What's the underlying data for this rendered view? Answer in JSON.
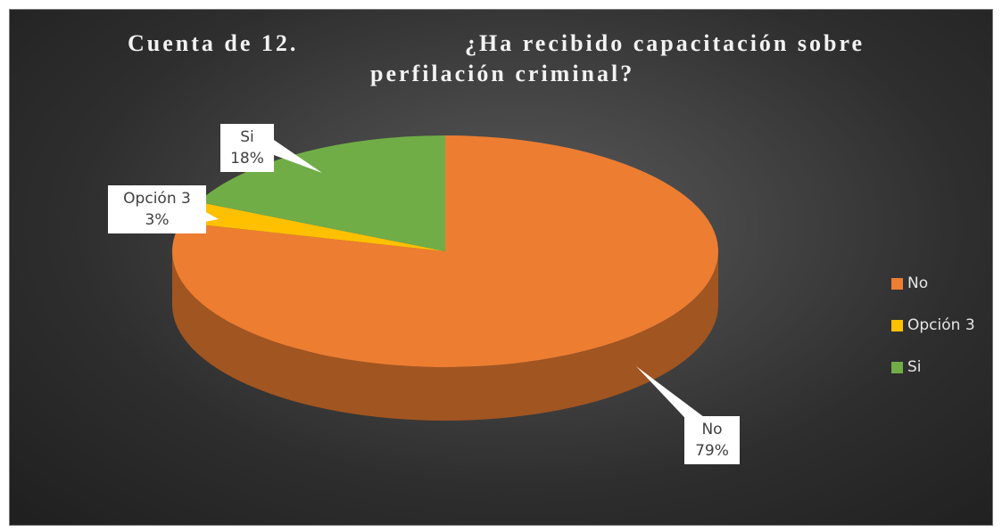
{
  "chart_data": {
    "type": "pie",
    "title": "Cuenta de 12.            ¿Ha recibido capacitación sobre perfilación criminal?",
    "title_parts": {
      "line1_left": "Cuenta de 12.",
      "line1_right": "¿Ha recibido capacitación sobre",
      "line2": "perfilación criminal?"
    },
    "slices": [
      {
        "name": "No",
        "value": 79,
        "label": "79%",
        "color": "#ed7d31"
      },
      {
        "name": "Opción 3",
        "value": 3,
        "label": "3%",
        "color": "#ffc000"
      },
      {
        "name": "Si",
        "value": 18,
        "label": "18%",
        "color": "#70ad47"
      }
    ],
    "legend": {
      "position": "right",
      "entries": [
        "No",
        "Opción 3",
        "Si"
      ]
    },
    "style": "3d"
  },
  "colors": {
    "background": "#2b2b2b",
    "title_text": "#f2f2f2",
    "legend_text": "#e6e6e6"
  }
}
